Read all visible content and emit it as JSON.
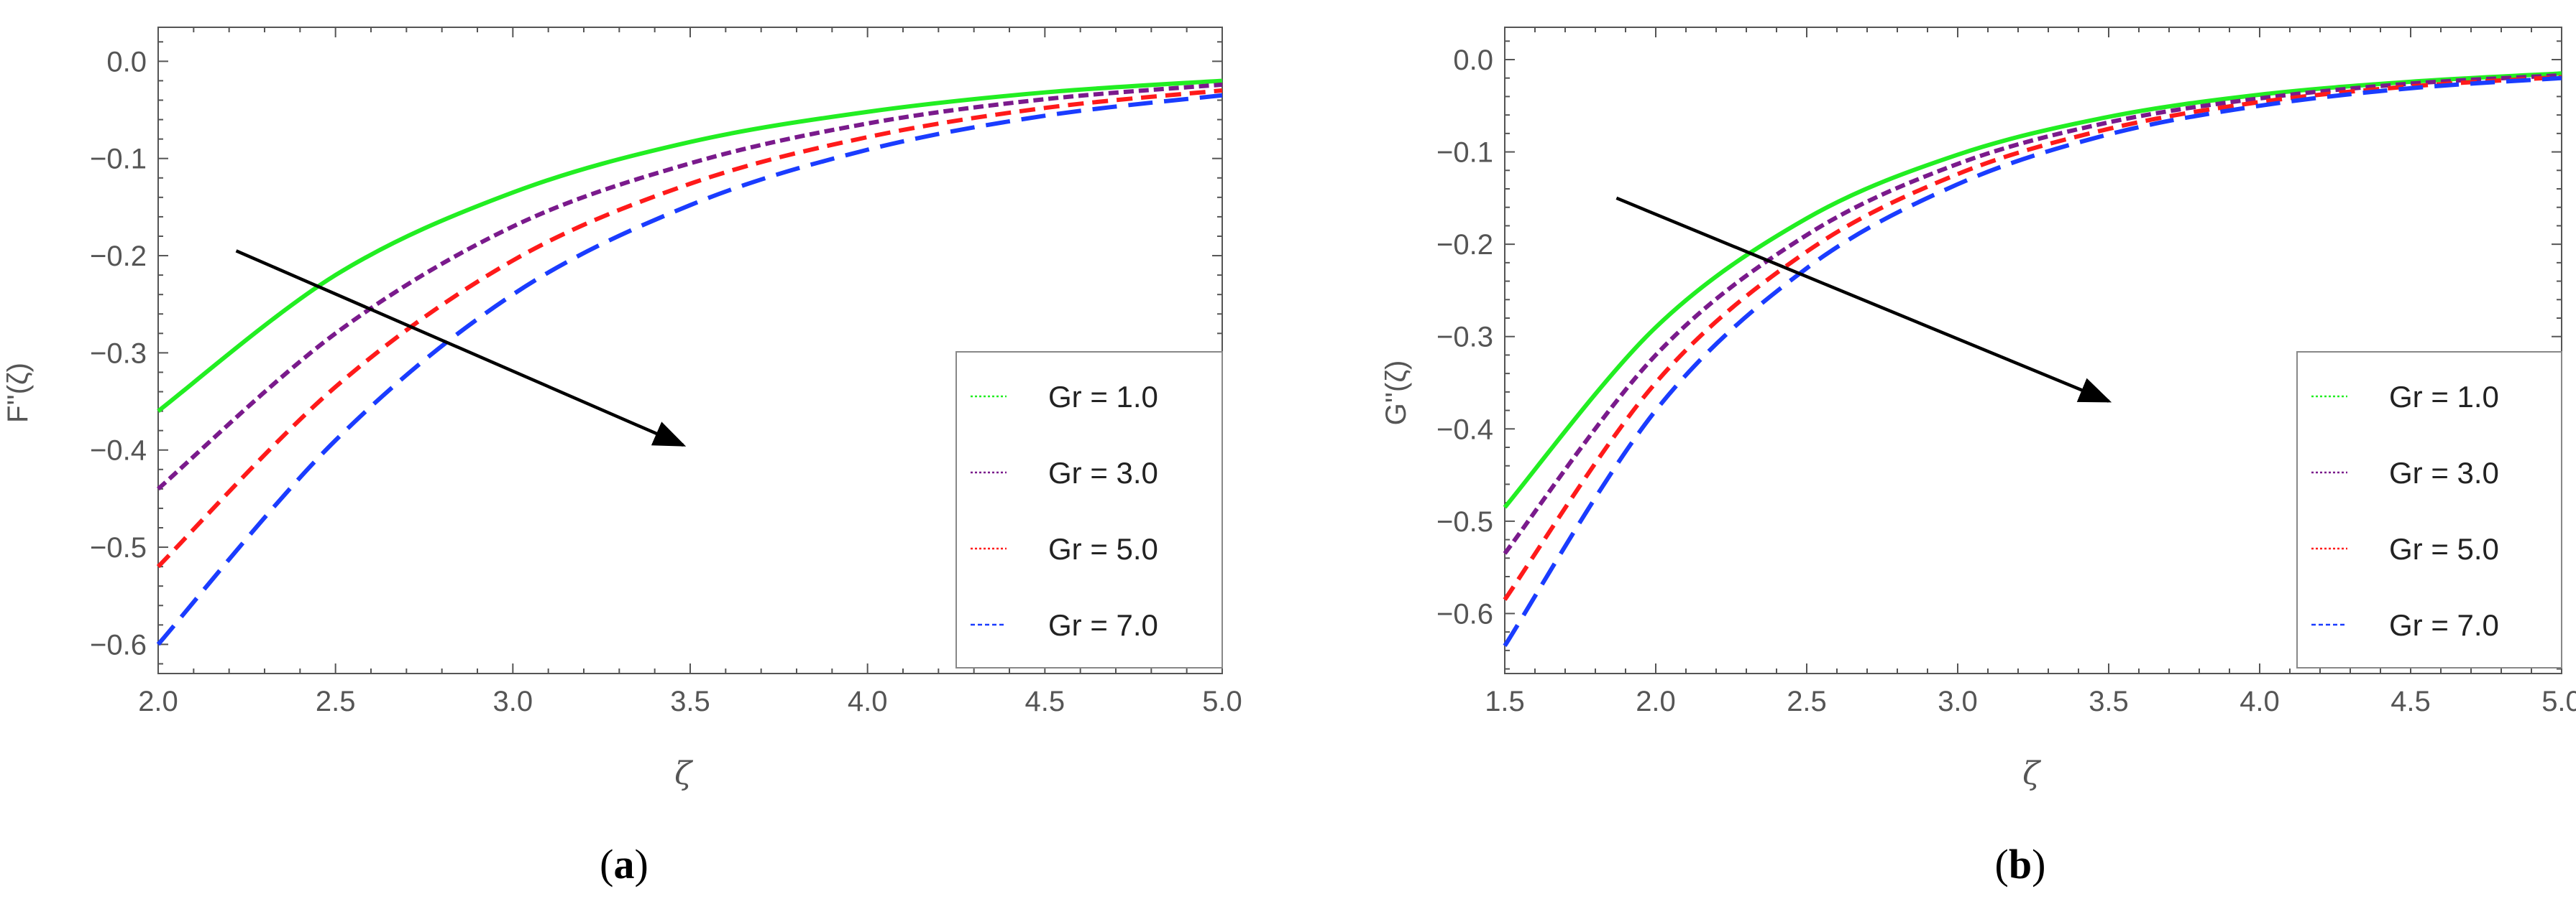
{
  "chart_data": [
    {
      "type": "line",
      "panel_label": "a",
      "caption_open": "(",
      "caption_close": ")",
      "xlabel": "ζ",
      "ylabel": "F''(ζ)",
      "xlim": [
        2.0,
        5.0
      ],
      "ylim": [
        -0.63,
        0.035
      ],
      "xticks": [
        "2.0",
        "2.5",
        "3.0",
        "3.5",
        "4.0",
        "4.5",
        "5.0"
      ],
      "yticks": [
        "0.0",
        "-0.1",
        "-0.2",
        "-0.3",
        "-0.4",
        "-0.5",
        "-0.6"
      ],
      "ytick_labels": [
        "0.0",
        "−0.1",
        "−0.2",
        "−0.3",
        "−0.4",
        "−0.5",
        "−0.6"
      ],
      "series": [
        {
          "name": "Gr = 1.0",
          "color": "#22ee22",
          "style": "solid",
          "x": [
            2.0,
            2.5,
            3.0,
            3.5,
            4.0,
            4.5,
            5.0
          ],
          "values": [
            -0.36,
            -0.22,
            -0.135,
            -0.083,
            -0.052,
            -0.032,
            -0.02
          ]
        },
        {
          "name": "Gr = 3.0",
          "color": "#7a1a8c",
          "style": "short-dash",
          "x": [
            2.0,
            2.5,
            3.0,
            3.5,
            4.0,
            4.5,
            5.0
          ],
          "values": [
            -0.44,
            -0.28,
            -0.17,
            -0.105,
            -0.064,
            -0.039,
            -0.024
          ]
        },
        {
          "name": "Gr = 5.0",
          "color": "#ff1a1a",
          "style": "medium-dash",
          "x": [
            2.0,
            2.5,
            3.0,
            3.5,
            4.0,
            4.5,
            5.0
          ],
          "values": [
            -0.52,
            -0.335,
            -0.205,
            -0.126,
            -0.078,
            -0.048,
            -0.03
          ]
        },
        {
          "name": "Gr = 7.0",
          "color": "#1a3cff",
          "style": "long-dash",
          "x": [
            2.0,
            2.5,
            3.0,
            3.5,
            4.0,
            4.5,
            5.0
          ],
          "values": [
            -0.6,
            -0.39,
            -0.24,
            -0.148,
            -0.091,
            -0.056,
            -0.035
          ]
        }
      ],
      "arrow": {
        "from": [
          2.22,
          -0.195
        ],
        "to": [
          3.48,
          -0.395
        ]
      },
      "legend_position": "bottom-right"
    },
    {
      "type": "line",
      "panel_label": "b",
      "caption_open": "(",
      "caption_close": ")",
      "xlabel": "ζ",
      "ylabel": "G''(ζ)",
      "xlim": [
        1.5,
        5.0
      ],
      "ylim": [
        -0.665,
        0.035
      ],
      "xticks": [
        "1.5",
        "2.0",
        "2.5",
        "3.0",
        "3.5",
        "4.0",
        "4.5",
        "5.0"
      ],
      "yticks": [
        "0.0",
        "-0.1",
        "-0.2",
        "-0.3",
        "-0.4",
        "-0.5",
        "-0.6"
      ],
      "ytick_labels": [
        "0.0",
        "−0.1",
        "−0.2",
        "−0.3",
        "−0.4",
        "−0.5",
        "−0.6"
      ],
      "series": [
        {
          "name": "Gr = 1.0",
          "color": "#22ee22",
          "style": "solid",
          "x": [
            1.5,
            2.0,
            2.5,
            3.0,
            3.5,
            4.0,
            4.5,
            5.0
          ],
          "values": [
            -0.485,
            -0.29,
            -0.172,
            -0.103,
            -0.062,
            -0.038,
            -0.024,
            -0.015
          ]
        },
        {
          "name": "Gr = 3.0",
          "color": "#7a1a8c",
          "style": "short-dash",
          "x": [
            1.5,
            2.0,
            2.5,
            3.0,
            3.5,
            4.0,
            4.5,
            5.0
          ],
          "values": [
            -0.535,
            -0.32,
            -0.19,
            -0.113,
            -0.068,
            -0.042,
            -0.026,
            -0.017
          ]
        },
        {
          "name": "Gr = 5.0",
          "color": "#ff1a1a",
          "style": "medium-dash",
          "x": [
            1.5,
            2.0,
            2.5,
            3.0,
            3.5,
            4.0,
            4.5,
            5.0
          ],
          "values": [
            -0.585,
            -0.35,
            -0.208,
            -0.124,
            -0.075,
            -0.046,
            -0.029,
            -0.019
          ]
        },
        {
          "name": "Gr = 7.0",
          "color": "#1a3cff",
          "style": "long-dash",
          "x": [
            1.5,
            2.0,
            2.5,
            3.0,
            3.5,
            4.0,
            4.5,
            5.0
          ],
          "values": [
            -0.635,
            -0.38,
            -0.226,
            -0.135,
            -0.081,
            -0.05,
            -0.031,
            -0.02
          ]
        }
      ],
      "arrow": {
        "from": [
          1.87,
          -0.15
        ],
        "to": [
          3.5,
          -0.37
        ]
      },
      "legend_position": "bottom-right"
    }
  ]
}
